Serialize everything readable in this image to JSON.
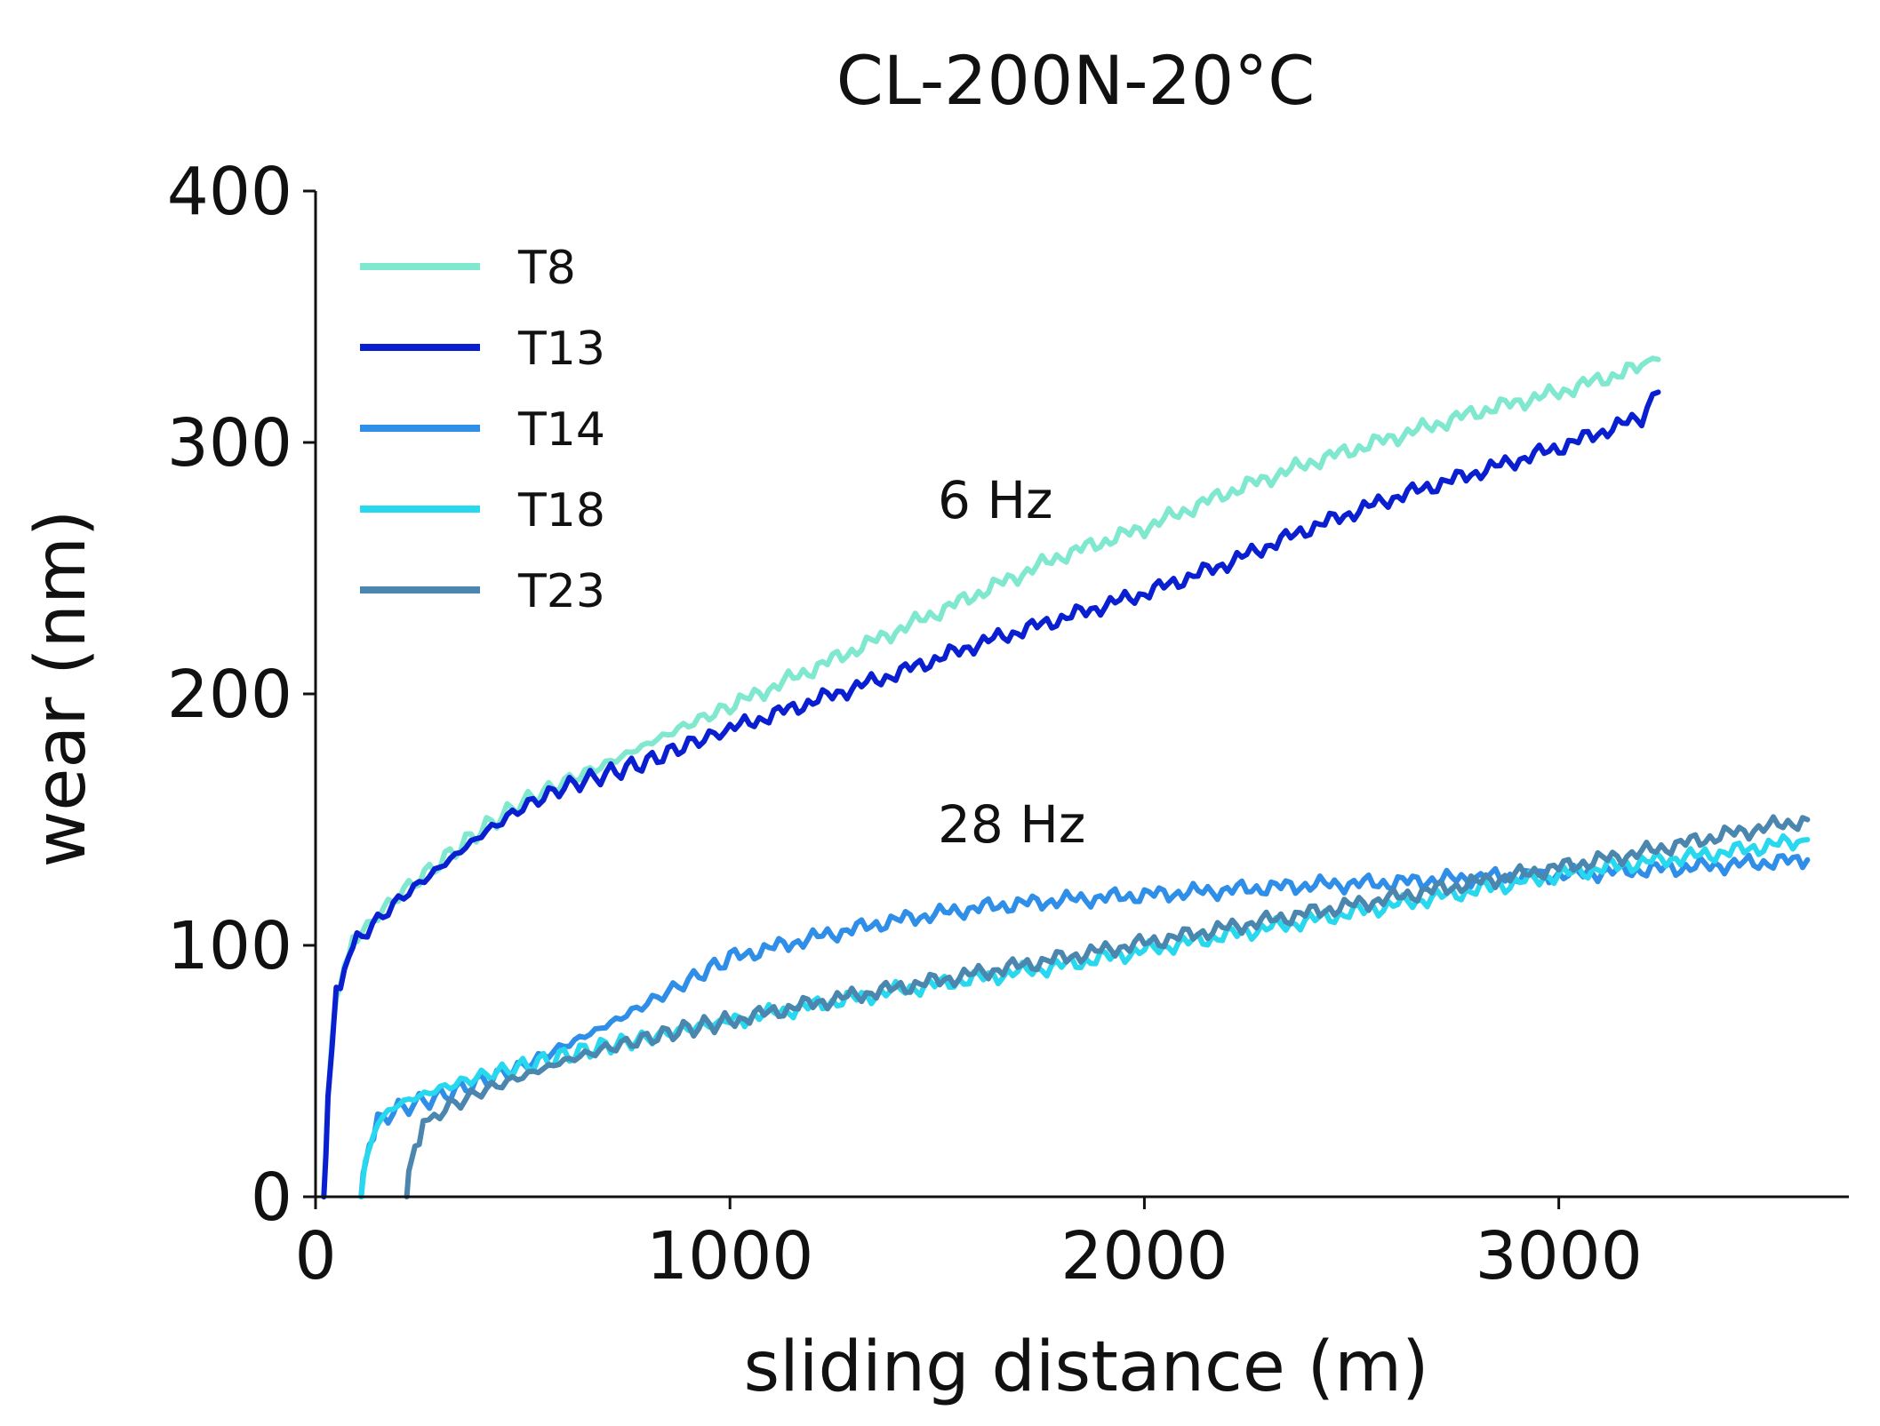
{
  "chart_data": {
    "type": "line",
    "title": "CL-200N-20°C",
    "xlabel": "sliding distance (m)",
    "ylabel": "wear (nm)",
    "xlim": [
      0,
      3700
    ],
    "ylim": [
      0,
      400
    ],
    "xticks": [
      0,
      1000,
      2000,
      3000
    ],
    "yticks": [
      0,
      100,
      200,
      300,
      400
    ],
    "legend_position": "top-left",
    "grid": false,
    "annotations": [
      {
        "text": "6 Hz",
        "x": 1500,
        "y": 275
      },
      {
        "text": "28 Hz",
        "x": 1500,
        "y": 145
      }
    ],
    "series": [
      {
        "name": "T8",
        "color": "#7fe8cf",
        "x": [
          20,
          30,
          50,
          80,
          100,
          150,
          200,
          300,
          400,
          500,
          600,
          700,
          800,
          900,
          1000,
          1200,
          1400,
          1600,
          1800,
          2000,
          2200,
          2400,
          2600,
          2800,
          3000,
          3200,
          3240
        ],
        "y": [
          0,
          40,
          80,
          97,
          103,
          112,
          120,
          133,
          146,
          157,
          165,
          172,
          180,
          188,
          195,
          210,
          225,
          240,
          255,
          266,
          280,
          292,
          302,
          312,
          320,
          330,
          333
        ]
      },
      {
        "name": "T13",
        "color": "#0a1fd0",
        "x": [
          20,
          30,
          50,
          80,
          100,
          150,
          200,
          300,
          400,
          500,
          600,
          700,
          800,
          900,
          1000,
          1200,
          1400,
          1600,
          1800,
          2000,
          2200,
          2400,
          2600,
          2800,
          3000,
          3200,
          3240
        ],
        "y": [
          0,
          40,
          80,
          96,
          102,
          110,
          118,
          131,
          144,
          155,
          163,
          168,
          173,
          180,
          186,
          197,
          208,
          220,
          230,
          240,
          252,
          266,
          278,
          288,
          298,
          310,
          320
        ]
      },
      {
        "name": "T14",
        "color": "#2f8ee8",
        "x": [
          110,
          120,
          150,
          200,
          300,
          400,
          500,
          600,
          700,
          800,
          900,
          1000,
          1200,
          1400,
          1600,
          1800,
          2000,
          2200,
          2400,
          2600,
          2800,
          3000,
          3200,
          3400,
          3600
        ],
        "y": [
          0,
          15,
          30,
          35,
          40,
          46,
          52,
          60,
          68,
          77,
          86,
          95,
          103,
          110,
          115,
          118,
          120,
          122,
          124,
          125,
          127,
          128,
          130,
          132,
          134
        ]
      },
      {
        "name": "T18",
        "color": "#28d8ee",
        "x": [
          110,
          120,
          150,
          200,
          300,
          400,
          500,
          600,
          700,
          800,
          900,
          1000,
          1200,
          1400,
          1600,
          1800,
          2000,
          2200,
          2400,
          2600,
          2800,
          3000,
          3200,
          3400,
          3600
        ],
        "y": [
          0,
          15,
          30,
          37,
          43,
          48,
          52,
          56,
          60,
          63,
          67,
          70,
          76,
          82,
          87,
          92,
          98,
          104,
          110,
          116,
          122,
          128,
          133,
          137,
          142
        ]
      },
      {
        "name": "T23",
        "color": "#4a86ad",
        "x": [
          220,
          230,
          260,
          300,
          400,
          500,
          600,
          700,
          800,
          900,
          1000,
          1200,
          1400,
          1600,
          1800,
          2000,
          2200,
          2400,
          2600,
          2800,
          3000,
          3200,
          3400,
          3600
        ],
        "y": [
          0,
          15,
          28,
          34,
          42,
          48,
          54,
          59,
          63,
          67,
          70,
          77,
          83,
          89,
          95,
          101,
          107,
          113,
          119,
          125,
          131,
          137,
          144,
          150
        ]
      }
    ]
  }
}
